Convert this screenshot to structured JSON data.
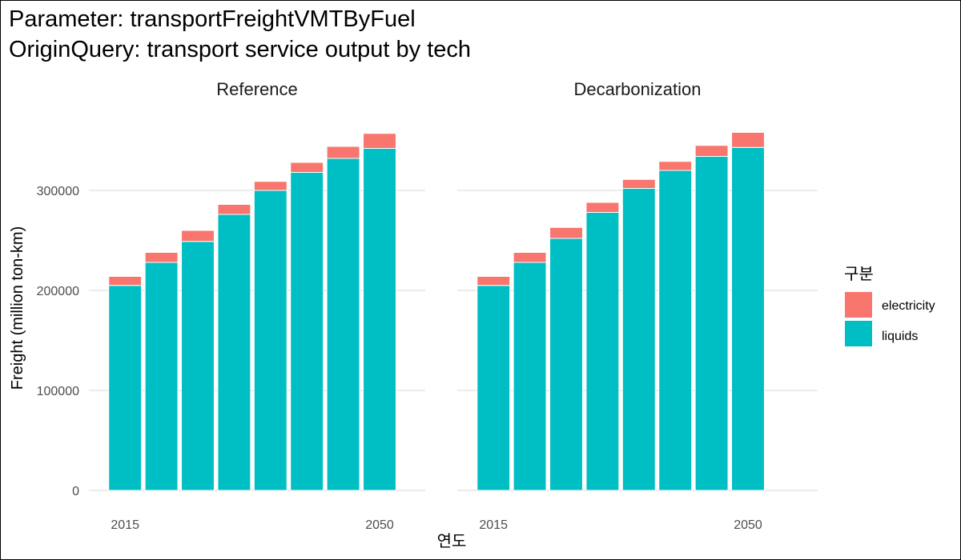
{
  "title": {
    "line1": "Parameter: transportFreightVMTByFuel",
    "line2": "OriginQuery: transport service output by tech"
  },
  "colors": {
    "electricity": "#F8766D",
    "liquids": "#00BFC4",
    "grid": "#EBEBEB"
  },
  "legend": {
    "title": "구분",
    "position": "right",
    "items": [
      {
        "label": "electricity",
        "color": "#F8766D"
      },
      {
        "label": "liquids",
        "color": "#00BFC4"
      }
    ]
  },
  "chart_data": {
    "type": "bar",
    "stacked": true,
    "xlabel": "연도",
    "ylabel": "Freight (million ton-km)",
    "ylim": [
      0,
      360000
    ],
    "yticks": [
      0,
      100000,
      200000,
      300000
    ],
    "ytick_labels": [
      "0",
      "100000",
      "200000",
      "300000"
    ],
    "x": [
      2015,
      2020,
      2025,
      2030,
      2035,
      2040,
      2045,
      2050
    ],
    "xtick_labels": [
      "2015",
      "2050"
    ],
    "grid": true,
    "facets": [
      {
        "name": "Reference",
        "series": [
          {
            "name": "liquids",
            "values": [
              205000,
              228000,
              249000,
              276000,
              300000,
              318000,
              332000,
              342000
            ]
          },
          {
            "name": "electricity",
            "values": [
              9000,
              10000,
              11000,
              10000,
              9000,
              10000,
              12000,
              15000
            ]
          }
        ]
      },
      {
        "name": "Decarbonization",
        "series": [
          {
            "name": "liquids",
            "values": [
              205000,
              228000,
              252000,
              278000,
              302000,
              320000,
              334000,
              343000
            ]
          },
          {
            "name": "electricity",
            "values": [
              9000,
              10000,
              11000,
              10000,
              9000,
              9000,
              11000,
              15000
            ]
          }
        ]
      }
    ]
  }
}
